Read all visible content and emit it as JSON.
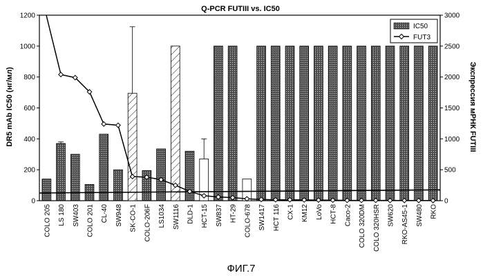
{
  "figure_label": "ФИГ.7",
  "chart_data": {
    "type": "bar",
    "title": "Q-PCR FUTIII vs. IC50",
    "ylabel": "DR5 mAb IC50 (нг/мл)",
    "y2label": "Экспрессия мРНК FUTIII",
    "ylim": [
      0,
      1200
    ],
    "y2lim": [
      0,
      3000
    ],
    "yticks": [
      0,
      200,
      400,
      600,
      800,
      1000,
      1200
    ],
    "y2ticks": [
      0,
      500,
      1000,
      1500,
      2000,
      2500,
      3000
    ],
    "legend_position": "top-right",
    "categories": [
      "COLO 205",
      "LS 180",
      "SW403",
      "COLO 201",
      "CL-40",
      "SW948",
      "SK-CO-1",
      "COLO-206F",
      "LS1034",
      "SW1116",
      "DLD-1",
      "HCT-15",
      "SW837",
      "HT-29",
      "COLO-678",
      "SW1417",
      "HCT 116",
      "CX-1",
      "KM12",
      "LoVo",
      "HCT-8",
      "Caco-2",
      "COLO 320DM",
      "COLO 320HSR",
      "SW620",
      "RKO-AS45-1",
      "SW480",
      "RKO"
    ],
    "series": [
      {
        "name": "IC50",
        "axis": "left",
        "style": "bar",
        "values": [
          140,
          370,
          300,
          105,
          430,
          200,
          695,
          195,
          335,
          1000,
          320,
          270,
          1000,
          1000,
          140,
          1000,
          1000,
          1000,
          1000,
          1000,
          1000,
          1000,
          1000,
          1000,
          1000,
          1000,
          1000,
          1000
        ],
        "error_plus": [
          0,
          10,
          0,
          0,
          0,
          0,
          430,
          0,
          0,
          0,
          0,
          130,
          0,
          0,
          0,
          0,
          0,
          0,
          0,
          0,
          0,
          0,
          0,
          0,
          0,
          0,
          0,
          0
        ],
        "bar_fill": [
          "dot",
          "dot",
          "dot",
          "dot",
          "dot",
          "dot",
          "hatch",
          "dot",
          "dot",
          "hatch",
          "dot",
          "white",
          "dot",
          "dot",
          "white",
          "dot",
          "dot",
          "dot",
          "dot",
          "dot",
          "dot",
          "dot",
          "dot",
          "dot",
          "dot",
          "dot",
          "dot",
          "dot"
        ]
      },
      {
        "name": "FUT3",
        "axis": "right",
        "style": "line-diamond",
        "values": [
          3000,
          2040,
          1990,
          1760,
          1240,
          1220,
          390,
          380,
          340,
          250,
          150,
          80,
          60,
          50,
          30,
          20,
          15,
          15,
          12,
          10,
          8,
          5,
          5,
          5,
          4,
          3,
          3,
          2
        ]
      }
    ],
    "reference_line": {
      "axis": "left",
      "from": 50,
      "to": 70
    }
  }
}
